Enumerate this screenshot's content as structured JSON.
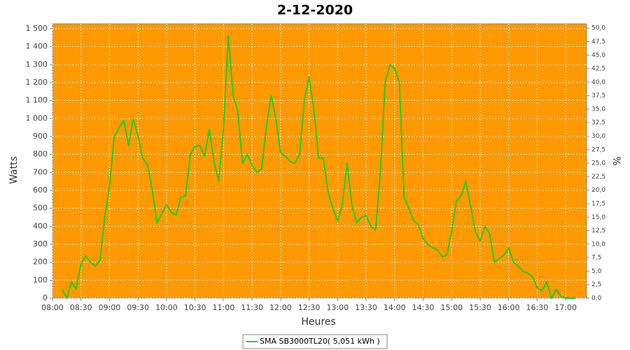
{
  "chart_data": {
    "type": "line",
    "title": "2-12-2020",
    "xlabel": "Heures",
    "ylabel": "Watts",
    "y2label": "%",
    "x": [
      "08:10",
      "08:15",
      "08:20",
      "08:25",
      "08:30",
      "08:35",
      "08:40",
      "08:45",
      "08:50",
      "08:55",
      "09:00",
      "09:05",
      "09:10",
      "09:15",
      "09:20",
      "09:25",
      "09:30",
      "09:35",
      "09:40",
      "09:45",
      "09:50",
      "09:55",
      "10:00",
      "10:05",
      "10:10",
      "10:15",
      "10:20",
      "10:25",
      "10:30",
      "10:35",
      "10:40",
      "10:45",
      "10:50",
      "10:55",
      "11:00",
      "11:05",
      "11:10",
      "11:15",
      "11:20",
      "11:25",
      "11:30",
      "11:35",
      "11:40",
      "11:45",
      "11:50",
      "11:55",
      "12:00",
      "12:05",
      "12:10",
      "12:15",
      "12:20",
      "12:25",
      "12:30",
      "12:35",
      "12:40",
      "12:45",
      "12:50",
      "12:55",
      "13:00",
      "13:05",
      "13:10",
      "13:15",
      "13:20",
      "13:25",
      "13:30",
      "13:35",
      "13:40",
      "13:45",
      "13:50",
      "13:55",
      "14:00",
      "14:05",
      "14:10",
      "14:15",
      "14:20",
      "14:25",
      "14:30",
      "14:35",
      "14:40",
      "14:45",
      "14:50",
      "14:55",
      "15:00",
      "15:05",
      "15:10",
      "15:15",
      "15:20",
      "15:25",
      "15:30",
      "15:35",
      "15:40",
      "15:45",
      "15:50",
      "15:55",
      "16:00",
      "16:05",
      "16:10",
      "16:15",
      "16:20",
      "16:25",
      "16:30",
      "16:35",
      "16:40",
      "16:45",
      "16:50",
      "16:55",
      "17:00",
      "17:05",
      "17:10"
    ],
    "series": [
      {
        "name": "SMA SB3000TL20( 5,051 kWh )",
        "color": "#22cc22",
        "values": [
          50,
          0,
          90,
          50,
          190,
          235,
          200,
          180,
          210,
          450,
          620,
          900,
          945,
          990,
          850,
          1000,
          900,
          780,
          740,
          600,
          420,
          470,
          520,
          480,
          460,
          560,
          570,
          800,
          845,
          850,
          790,
          940,
          760,
          650,
          950,
          1460,
          1130,
          1040,
          750,
          800,
          740,
          700,
          720,
          950,
          1130,
          1000,
          810,
          790,
          760,
          750,
          800,
          1100,
          1230,
          1050,
          780,
          780,
          590,
          500,
          430,
          520,
          750,
          520,
          420,
          450,
          460,
          400,
          380,
          700,
          1200,
          1300,
          1280,
          1200,
          560,
          500,
          430,
          410,
          330,
          300,
          280,
          270,
          230,
          240,
          370,
          540,
          570,
          650,
          510,
          370,
          320,
          400,
          360,
          200,
          220,
          240,
          280,
          200,
          180,
          150,
          140,
          120,
          60,
          40,
          90,
          0,
          50,
          10,
          0,
          0,
          0
        ]
      }
    ],
    "xlim": [
      "08:00",
      "17:22"
    ],
    "xticks": [
      "08:00",
      "08:30",
      "09:00",
      "09:30",
      "10:00",
      "10:30",
      "11:00",
      "11:30",
      "12:00",
      "12:30",
      "13:00",
      "13:30",
      "14:00",
      "14:30",
      "15:00",
      "15:30",
      "16:00",
      "16:30",
      "17:00"
    ],
    "ylim": [
      0,
      1527
    ],
    "yticks": [
      0,
      100,
      200,
      300,
      400,
      500,
      600,
      700,
      800,
      900,
      {
        "value": 1000,
        "label": "1 000"
      },
      {
        "value": 1100,
        "label": "1 100"
      },
      {
        "value": 1200,
        "label": "1 200"
      },
      {
        "value": 1300,
        "label": "1 300"
      },
      {
        "value": 1400,
        "label": "1 400"
      },
      {
        "value": 1500,
        "label": "1 500"
      }
    ],
    "y2lim": [
      0,
      50.8
    ],
    "y2ticks": [
      {
        "value": 0,
        "label": "0,0"
      },
      {
        "value": 2.5,
        "label": "2,5"
      },
      {
        "value": 5,
        "label": "5,0"
      },
      {
        "value": 7.5,
        "label": "7,5"
      },
      {
        "value": 10,
        "label": "10,0"
      },
      {
        "value": 12.5,
        "label": "12,5"
      },
      {
        "value": 15,
        "label": "15,0"
      },
      {
        "value": 17.5,
        "label": "17,5"
      },
      {
        "value": 20,
        "label": "20,0"
      },
      {
        "value": 22.5,
        "label": "22,5"
      },
      {
        "value": 25,
        "label": "25,0"
      },
      {
        "value": 27.5,
        "label": "27,5"
      },
      {
        "value": 30,
        "label": "30,0"
      },
      {
        "value": 32.5,
        "label": "32,5"
      },
      {
        "value": 35,
        "label": "35,0"
      },
      {
        "value": 37.5,
        "label": "37,5"
      },
      {
        "value": 40,
        "label": "40,0"
      },
      {
        "value": 42.5,
        "label": "42,5"
      },
      {
        "value": 45,
        "label": "45,0"
      },
      {
        "value": 47.5,
        "label": "47,5"
      },
      {
        "value": 50,
        "label": "50,0"
      }
    ],
    "background": "#ff9900",
    "grid": true
  }
}
